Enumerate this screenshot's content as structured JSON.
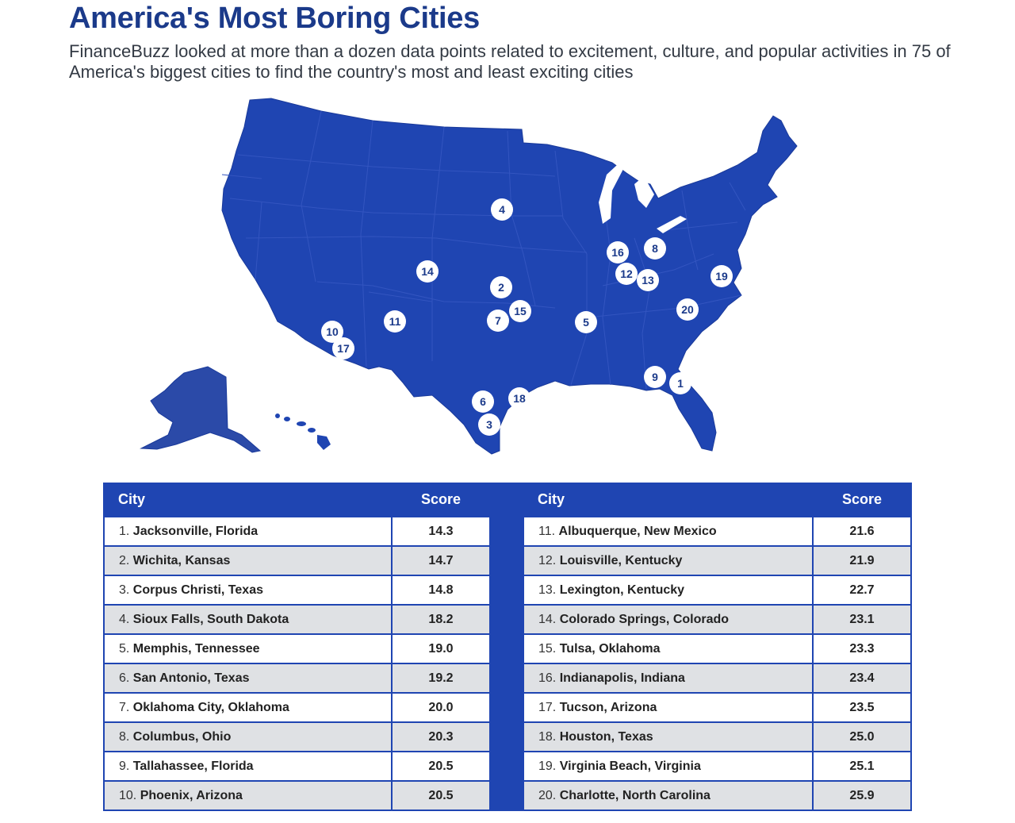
{
  "header": {
    "title": "America's Most Boring Cities",
    "subtitle": "FinanceBuzz looked at more than a dozen data points related to excitement, culture, and popular activities in 75 of America's biggest cities to find the country's most and least exciting cities"
  },
  "colors": {
    "map_fill": "#1f45b2",
    "title": "#1b3a8a",
    "marker_bg": "#ffffff"
  },
  "table": {
    "left": {
      "header_city": "City",
      "header_score": "Score",
      "rows": [
        {
          "rank": "1.",
          "city": "Jacksonville, Florida",
          "score": "14.3"
        },
        {
          "rank": "2.",
          "city": "Wichita, Kansas",
          "score": "14.7"
        },
        {
          "rank": "3.",
          "city": "Corpus Christi, Texas",
          "score": "14.8"
        },
        {
          "rank": "4.",
          "city": "Sioux Falls, South Dakota",
          "score": "18.2"
        },
        {
          "rank": "5.",
          "city": "Memphis, Tennessee",
          "score": "19.0"
        },
        {
          "rank": "6.",
          "city": "San Antonio, Texas",
          "score": "19.2"
        },
        {
          "rank": "7.",
          "city": "Oklahoma City, Oklahoma",
          "score": "20.0"
        },
        {
          "rank": "8.",
          "city": "Columbus, Ohio",
          "score": "20.3"
        },
        {
          "rank": "9.",
          "city": "Tallahassee, Florida",
          "score": "20.5"
        },
        {
          "rank": "10.",
          "city": "Phoenix, Arizona",
          "score": "20.5"
        }
      ]
    },
    "right": {
      "header_city": "City",
      "header_score": "Score",
      "rows": [
        {
          "rank": "11.",
          "city": "Albuquerque, New Mexico",
          "score": "21.6"
        },
        {
          "rank": "12.",
          "city": "Louisville, Kentucky",
          "score": "21.9"
        },
        {
          "rank": "13.",
          "city": "Lexington, Kentucky",
          "score": "22.7"
        },
        {
          "rank": "14.",
          "city": "Colorado Springs, Colorado",
          "score": "23.1"
        },
        {
          "rank": "15.",
          "city": "Tulsa, Oklahoma",
          "score": "23.3"
        },
        {
          "rank": "16.",
          "city": "Indianapolis, Indiana",
          "score": "23.4"
        },
        {
          "rank": "17.",
          "city": "Tucson, Arizona",
          "score": "23.5"
        },
        {
          "rank": "18.",
          "city": "Houston, Texas",
          "score": "25.0"
        },
        {
          "rank": "19.",
          "city": "Virginia Beach, Virginia",
          "score": "25.1"
        },
        {
          "rank": "20.",
          "city": "Charlotte, North Carolina",
          "score": "25.9"
        }
      ]
    }
  },
  "map_markers": [
    "1",
    "2",
    "3",
    "4",
    "5",
    "6",
    "7",
    "8",
    "9",
    "10",
    "11",
    "12",
    "13",
    "14",
    "15",
    "16",
    "17",
    "18",
    "19",
    "20"
  ]
}
